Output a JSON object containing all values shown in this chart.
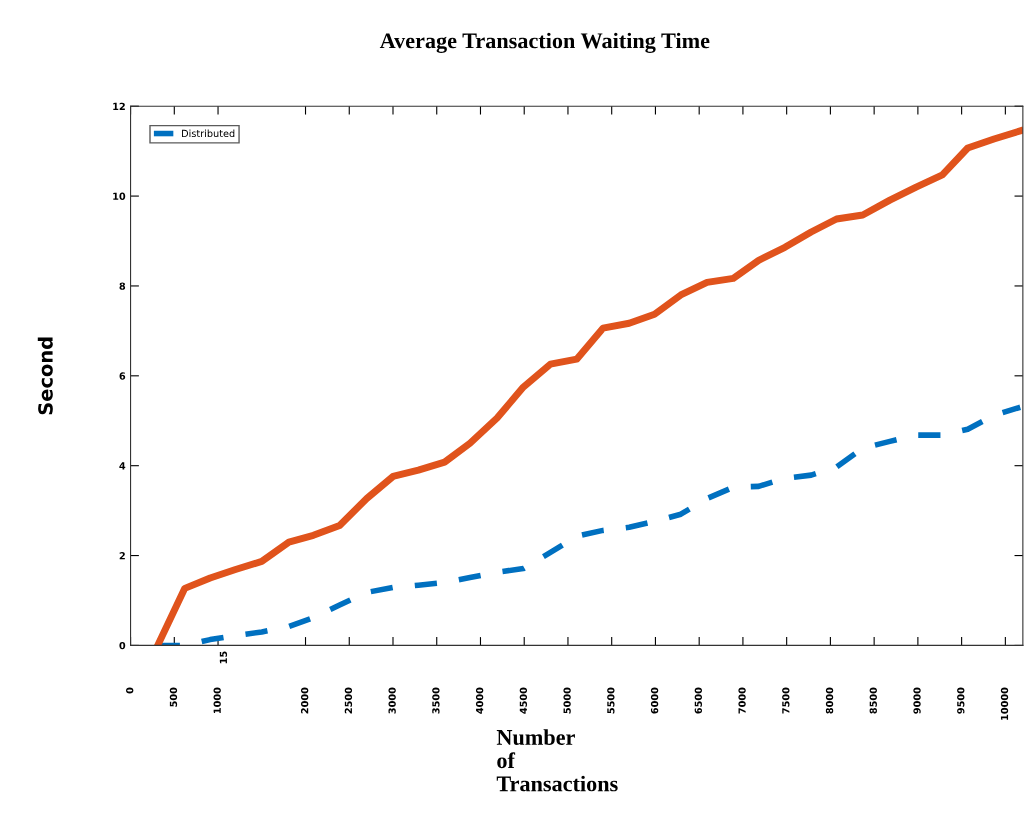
{
  "chart_data": {
    "type": "line",
    "title": "Average Transaction Waiting Time",
    "xlabel": "Number of Transactions",
    "ylabel": "Second",
    "x": [
      310,
      620,
      910,
      1200,
      1500,
      1810,
      2090,
      2390,
      2700,
      3000,
      3290,
      3590,
      3880,
      4190,
      4490,
      4800,
      5100,
      5400,
      5700,
      5990,
      6290,
      6590,
      6890,
      7180,
      7480,
      7780,
      8070,
      8370,
      8680,
      8980,
      9280,
      9570,
      9870,
      10170
    ],
    "series": [
      {
        "name": "Distributed",
        "color": "#0070c0",
        "line_style": "dashed",
        "values": [
          0,
          0,
          0.13,
          0.22,
          0.3,
          0.42,
          0.62,
          0.9,
          1.18,
          1.29,
          1.34,
          1.4,
          1.51,
          1.63,
          1.71,
          2.07,
          2.43,
          2.56,
          2.63,
          2.76,
          2.92,
          3.27,
          3.52,
          3.54,
          3.72,
          3.79,
          3.97,
          4.39,
          4.54,
          4.68,
          4.68,
          4.81,
          5.12,
          5.3
        ]
      },
      {
        "color": "#e0531c",
        "line_style": "solid",
        "values": [
          0,
          1.27,
          1.5,
          1.69,
          1.87,
          2.3,
          2.45,
          2.67,
          3.27,
          3.76,
          3.9,
          4.08,
          4.5,
          5.06,
          5.75,
          6.26,
          6.37,
          7.06,
          7.17,
          7.37,
          7.8,
          8.08,
          8.17,
          8.57,
          8.86,
          9.2,
          9.49,
          9.58,
          9.91,
          10.2,
          10.47,
          11.07,
          11.27,
          11.45
        ]
      }
    ],
    "xlim": [
      0,
      10200
    ],
    "xticks": [
      0,
      500,
      1000,
      2000,
      2500,
      3000,
      3500,
      4000,
      4500,
      5000,
      5500,
      6000,
      6500,
      7000,
      7500,
      8000,
      8500,
      9000,
      9500,
      10000
    ],
    "ylim": [
      0,
      12
    ],
    "yticks": [
      0,
      2,
      4,
      6,
      8,
      10,
      12
    ],
    "annotations": [
      "15"
    ],
    "grid": false,
    "legend": "top left"
  }
}
